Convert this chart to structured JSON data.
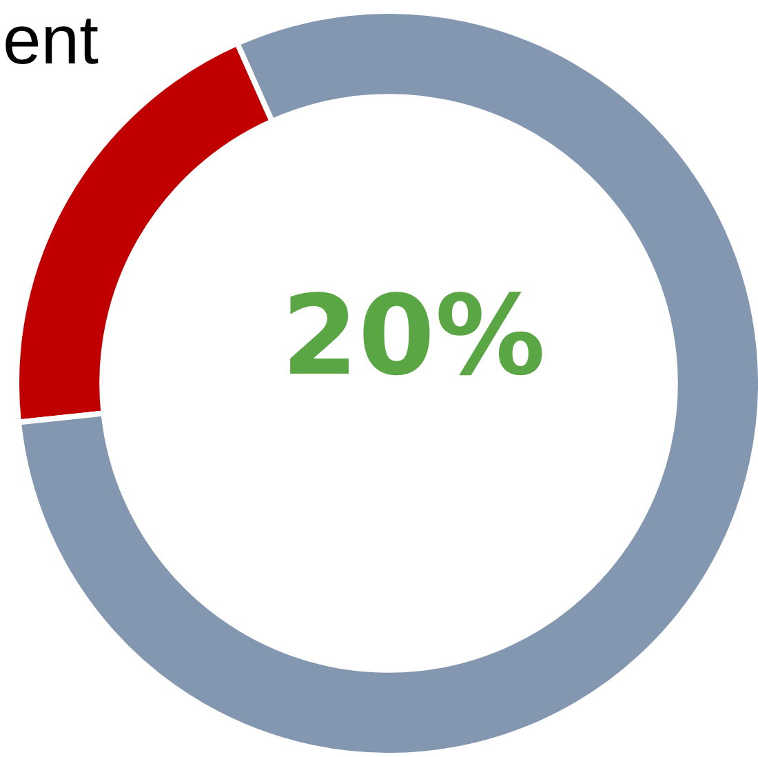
{
  "chart_data": {
    "type": "donut",
    "title": "ent",
    "categories": [
      null,
      null
    ],
    "values": [
      20,
      80
    ],
    "colors": [
      "#c00000",
      "#8497b0"
    ],
    "annotations": [
      "20%"
    ],
    "legend": false
  }
}
